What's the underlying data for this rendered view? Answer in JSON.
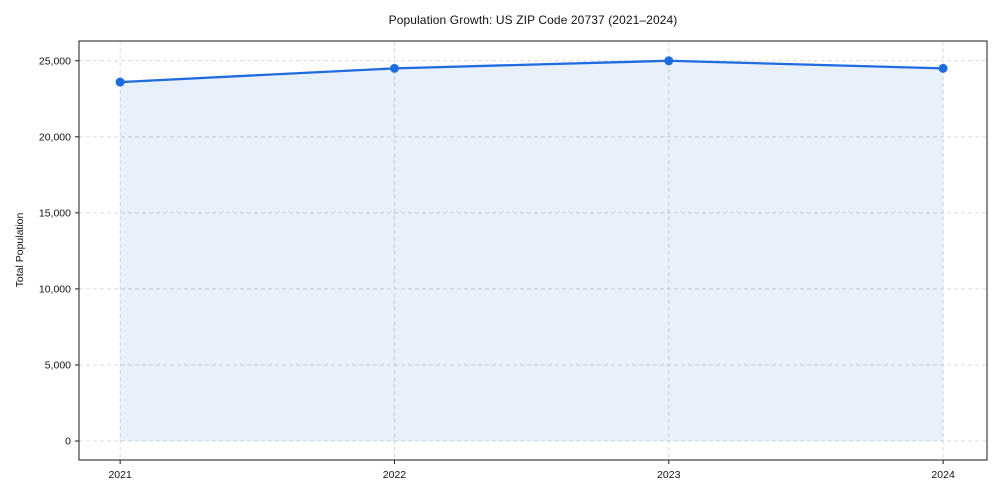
{
  "chart_data": {
    "type": "line",
    "title": "Population Growth: US ZIP Code 20737 (2021–2024)",
    "xlabel": "",
    "ylabel": "Total Population",
    "x": [
      2021,
      2022,
      2023,
      2024
    ],
    "series": [
      {
        "name": "Total Population",
        "values": [
          23600,
          24500,
          25000,
          24500
        ]
      }
    ],
    "xticks": [
      2021,
      2022,
      2023,
      2024
    ],
    "yticks": [
      0,
      5000,
      10000,
      15000,
      20000,
      25000
    ],
    "xlim": [
      2020.85,
      2024.16
    ],
    "ylim": [
      -1250,
      26300
    ],
    "grid": "dashed, both axes",
    "legend": "none",
    "area_fill_under_line": true,
    "line_color": "#1f6be0",
    "marker_color": "#1f6be0",
    "fill_color": "rgba(31,107,224,0.10)",
    "grid_color": "#d9d9d9",
    "spine_color": "#1a1a1a"
  }
}
